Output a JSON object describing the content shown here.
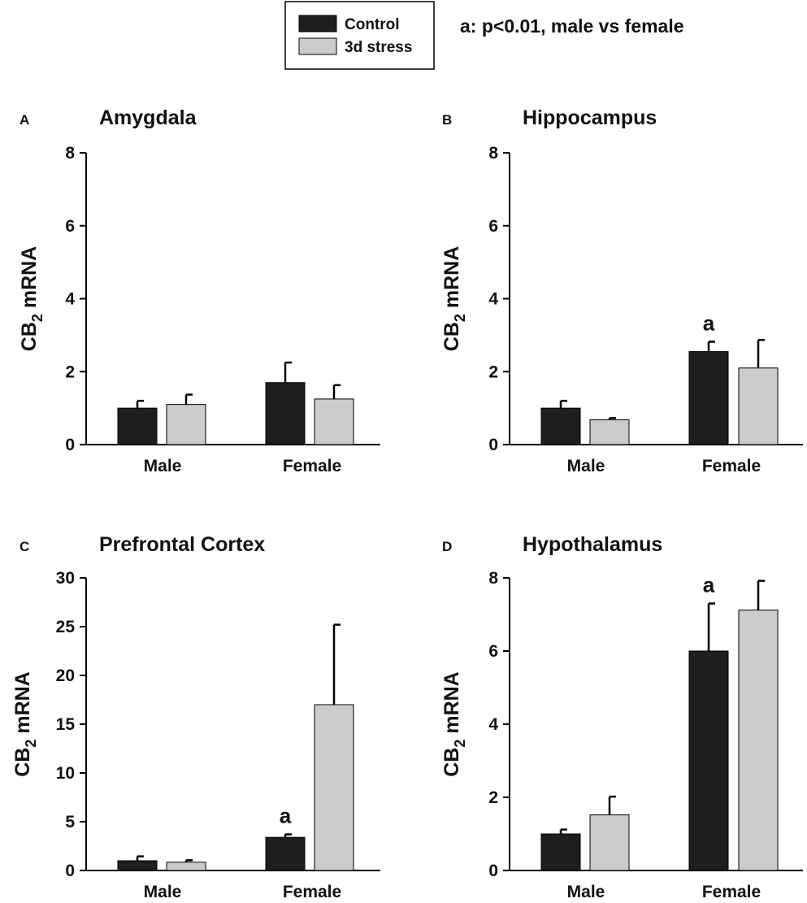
{
  "legend": {
    "items": [
      {
        "label": "Control",
        "color": "#1e1e1e"
      },
      {
        "label": "3d stress",
        "color": "#cbcbcb"
      }
    ],
    "note": "a: p<0.01, male  vs female"
  },
  "chart_data": [
    {
      "type": "bar",
      "panel": "A",
      "title": "Amygdala",
      "ylabel": "CB2 mRNA",
      "ylabel_main": "CB",
      "ylabel_sub": "2",
      "ylabel_rest": " mRNA",
      "categories": [
        "Male",
        "Female"
      ],
      "ylim": [
        0,
        8
      ],
      "yticks": [
        0,
        2,
        4,
        6,
        8
      ],
      "series": [
        {
          "name": "Control",
          "values": [
            1.0,
            1.7
          ],
          "errors": [
            0.2,
            0.55
          ]
        },
        {
          "name": "3d stress",
          "values": [
            1.1,
            1.25
          ],
          "errors": [
            0.27,
            0.38
          ]
        }
      ],
      "annotations": []
    },
    {
      "type": "bar",
      "panel": "B",
      "title": "Hippocampus",
      "ylabel": "CB2 mRNA",
      "ylabel_main": "CB",
      "ylabel_sub": "2",
      "ylabel_rest": " mRNA",
      "categories": [
        "Male",
        "Female"
      ],
      "ylim": [
        0,
        8
      ],
      "yticks": [
        0,
        2,
        4,
        6,
        8
      ],
      "series": [
        {
          "name": "Control",
          "values": [
            1.0,
            2.55
          ],
          "errors": [
            0.2,
            0.27
          ]
        },
        {
          "name": "3d stress",
          "values": [
            0.68,
            2.1
          ],
          "errors": [
            0.05,
            0.77
          ]
        }
      ],
      "annotations": [
        {
          "series": 0,
          "category": 1,
          "text": "a"
        }
      ]
    },
    {
      "type": "bar",
      "panel": "C",
      "title": "Prefrontal Cortex",
      "ylabel": "CB2 mRNA",
      "ylabel_main": "CB",
      "ylabel_sub": "2",
      "ylabel_rest": " mRNA",
      "categories": [
        "Male",
        "Female"
      ],
      "ylim": [
        0,
        30
      ],
      "yticks": [
        0,
        5,
        10,
        15,
        20,
        25,
        30
      ],
      "series": [
        {
          "name": "Control",
          "values": [
            1.0,
            3.4
          ],
          "errors": [
            0.45,
            0.3
          ]
        },
        {
          "name": "3d stress",
          "values": [
            0.85,
            17.0
          ],
          "errors": [
            0.2,
            8.2
          ]
        }
      ],
      "annotations": [
        {
          "series": 0,
          "category": 1,
          "text": "a"
        }
      ]
    },
    {
      "type": "bar",
      "panel": "D",
      "title": "Hypothalamus",
      "ylabel": "CB2 mRNA",
      "ylabel_main": "CB",
      "ylabel_sub": "2",
      "ylabel_rest": " mRNA",
      "categories": [
        "Male",
        "Female"
      ],
      "ylim": [
        0,
        8
      ],
      "yticks": [
        0,
        2,
        4,
        6,
        8
      ],
      "series": [
        {
          "name": "Control",
          "values": [
            1.0,
            6.0
          ],
          "errors": [
            0.12,
            1.3
          ]
        },
        {
          "name": "3d stress",
          "values": [
            1.52,
            7.12
          ],
          "errors": [
            0.5,
            0.8
          ]
        }
      ],
      "annotations": [
        {
          "series": 0,
          "category": 1,
          "text": "a"
        }
      ]
    }
  ]
}
